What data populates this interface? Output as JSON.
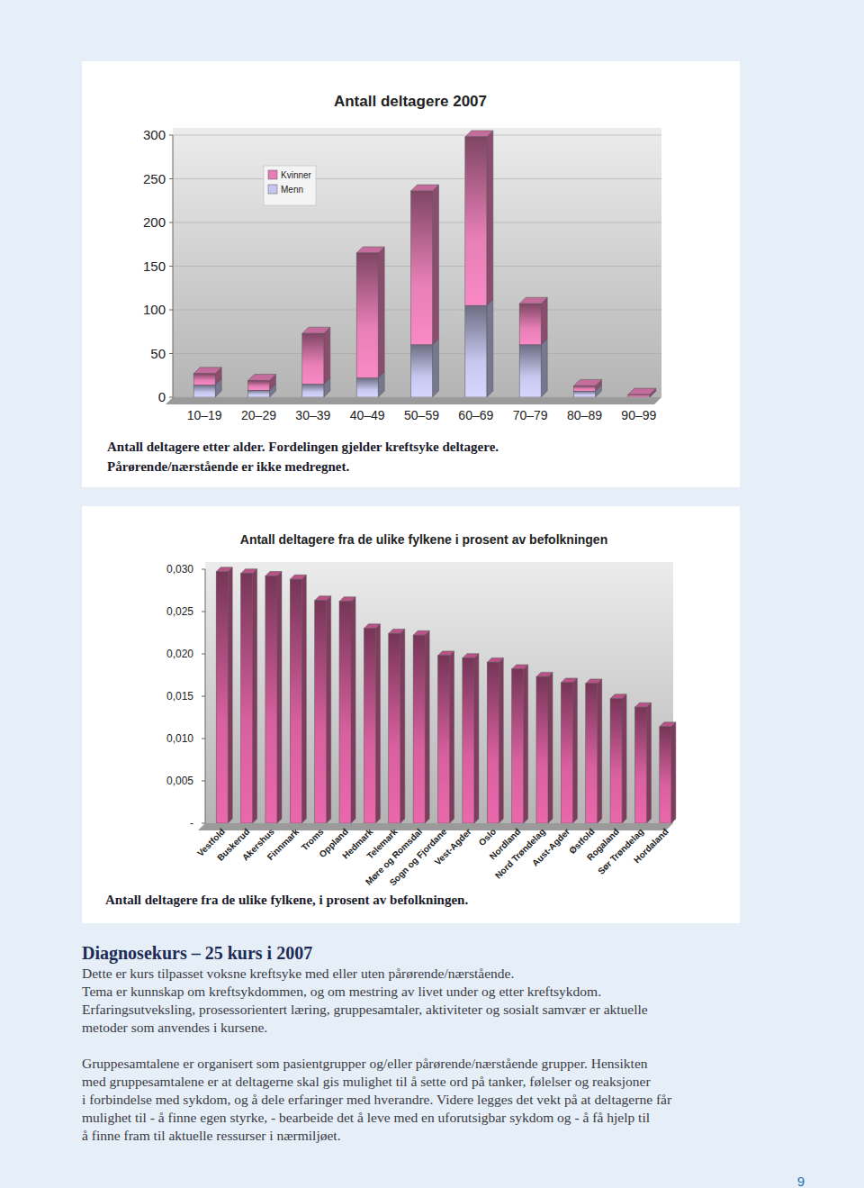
{
  "chart_data": [
    {
      "type": "bar",
      "title": "Antall deltagere 2007",
      "caption": [
        "Antall deltagere etter alder. Fordelingen gjelder kreftsyke deltagere.",
        "Pårørende/nærstående er ikke medregnet."
      ],
      "categories": [
        "10–19",
        "20–29",
        "30–39",
        "40–49",
        "50–59",
        "60–69",
        "70–79",
        "80–89",
        "90–99"
      ],
      "series": [
        {
          "name": "Kvinner",
          "color": "#e77fb6",
          "values": [
            13,
            11,
            58,
            143,
            176,
            193,
            47,
            6,
            3
          ]
        },
        {
          "name": "Menn",
          "color": "#c6c6ee",
          "values": [
            14,
            8,
            15,
            22,
            60,
            105,
            60,
            7,
            0
          ]
        }
      ],
      "stacked": true,
      "legend": "upper left",
      "grid": true,
      "ylim": [
        0,
        300
      ],
      "yticks": [
        0,
        50,
        100,
        150,
        200,
        250,
        300
      ]
    },
    {
      "type": "bar",
      "title": "Antall deltagere fra de ulike fylkene i prosent av befolkningen",
      "caption": [
        "Antall deltagere fra de ulike fylkene, i prosent av befolkningen."
      ],
      "categories": [
        "Vestfold",
        "Buskerud",
        "Akershus",
        "Finnmark",
        "Troms",
        "Oppland",
        "Hedmark",
        "Telemark",
        "Møre og Romsdal",
        "Sogn og Fjordane",
        "Vest-Agder",
        "Oslo",
        "Nordland",
        "Nord Trøndelag",
        "Aust-Agder",
        "Østfold",
        "Rogaland",
        "Sør Trøndelag",
        "Hordaland"
      ],
      "values": [
        0.0297,
        0.0295,
        0.0292,
        0.0288,
        0.0263,
        0.0262,
        0.023,
        0.0224,
        0.0222,
        0.0198,
        0.0195,
        0.019,
        0.0182,
        0.0173,
        0.0166,
        0.0165,
        0.0147,
        0.0137,
        0.0114
      ],
      "color": "#d9609f",
      "grid": false,
      "ylim": [
        0,
        0.03
      ],
      "yticks": [
        {
          "value": 0,
          "label": "-"
        },
        {
          "value": 0.005,
          "label": "0,005"
        },
        {
          "value": 0.01,
          "label": "0,010"
        },
        {
          "value": 0.015,
          "label": "0,015"
        },
        {
          "value": 0.02,
          "label": "0,020"
        },
        {
          "value": 0.025,
          "label": "0,025"
        },
        {
          "value": 0.03,
          "label": "0,030"
        }
      ]
    }
  ],
  "document": {
    "heading": "Diagnosekurs – 25 kurs i 2007",
    "paragraphs": [
      [
        "Dette er kurs tilpasset voksne kreftsyke med eller uten pårørende/nærstående.",
        "Tema er kunnskap om kreftsykdommen, og om mestring av livet under og etter kreftsykdom.",
        "Erfaringsutveksling, prosessorientert læring, gruppesamtaler, aktiviteter og sosialt samvær er aktuelle",
        "metoder som anvendes i kursene."
      ],
      [
        "Gruppesamtalene er organisert som pasientgrupper og/eller pårørende/nærstående grupper. Hensikten",
        "med gruppesamtalene er at deltagerne skal gis mulighet til å sette ord på tanker, følelser og reaksjoner",
        "i forbindelse med sykdom, og å dele erfaringer med hverandre. Videre legges det vekt på at deltagerne får",
        "mulighet til - å finne egen styrke, - bearbeide det å leve med en uforutsigbar sykdom og - å få hjelp til",
        "å finne fram til aktuelle ressurser i nærmiljøet."
      ]
    ],
    "page_number": "9"
  }
}
